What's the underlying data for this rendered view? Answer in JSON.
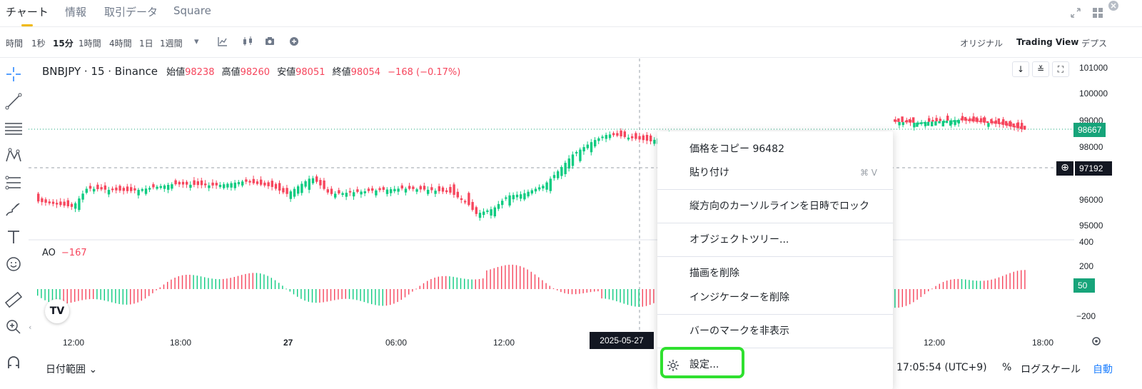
{
  "tabs": [
    {
      "label": "チャート",
      "active": true
    },
    {
      "label": "情報"
    },
    {
      "label": "取引データ"
    },
    {
      "label": "Square"
    }
  ],
  "toolbar": {
    "intervals": [
      "時間",
      "1秒",
      "15分",
      "1時間",
      "4時間",
      "1日",
      "1週間"
    ],
    "selected_interval": "15分",
    "views": [
      "オリジナル",
      "Trading View",
      "デプス"
    ],
    "selected_view": "Trading View"
  },
  "legend": {
    "symbol": "BNBJPY · 15 · Binance",
    "open_label": "始値",
    "open": "98238",
    "high_label": "高値",
    "high": "98260",
    "low_label": "安値",
    "low": "98051",
    "close_label": "終値",
    "close": "98054",
    "change": "−168 (−0.17%)"
  },
  "ao_legend": {
    "label": "AO",
    "value": "−167"
  },
  "price_axis": [
    "101000",
    "100000",
    "99000",
    "98000",
    "96000",
    "95000"
  ],
  "ao_axis": [
    "400",
    "200",
    "−200"
  ],
  "price_tags": {
    "last": "98667",
    "cursor": "97192",
    "ao": "50"
  },
  "time_axis": [
    "12:00",
    "18:00",
    "27",
    "06:00",
    "12:00",
    "12:00",
    "18:00"
  ],
  "crosshair_date": "2025-05-27",
  "bottom": {
    "range_label": "日付範囲",
    "clock": "17:05:54 (UTC+9)",
    "percent": "%",
    "log": "ログスケール",
    "auto": "自動"
  },
  "context_menu": {
    "copy_price": "価格をコピー 96482",
    "paste": "貼り付け",
    "paste_shortcut": "⌘ V",
    "lock_cursor": "縦方向のカーソルラインを日時でロック",
    "object_tree": "オブジェクトツリー...",
    "remove_drawings": "描画を削除",
    "remove_indicators": "インジケーターを削除",
    "hide_marks": "バーのマークを非表示",
    "settings": "設定..."
  },
  "colors": {
    "up": "#0ecb81",
    "down": "#f6465d",
    "accent": "#f0b90b",
    "highlight": "#2fe02f",
    "blue": "#1e80ff"
  }
}
